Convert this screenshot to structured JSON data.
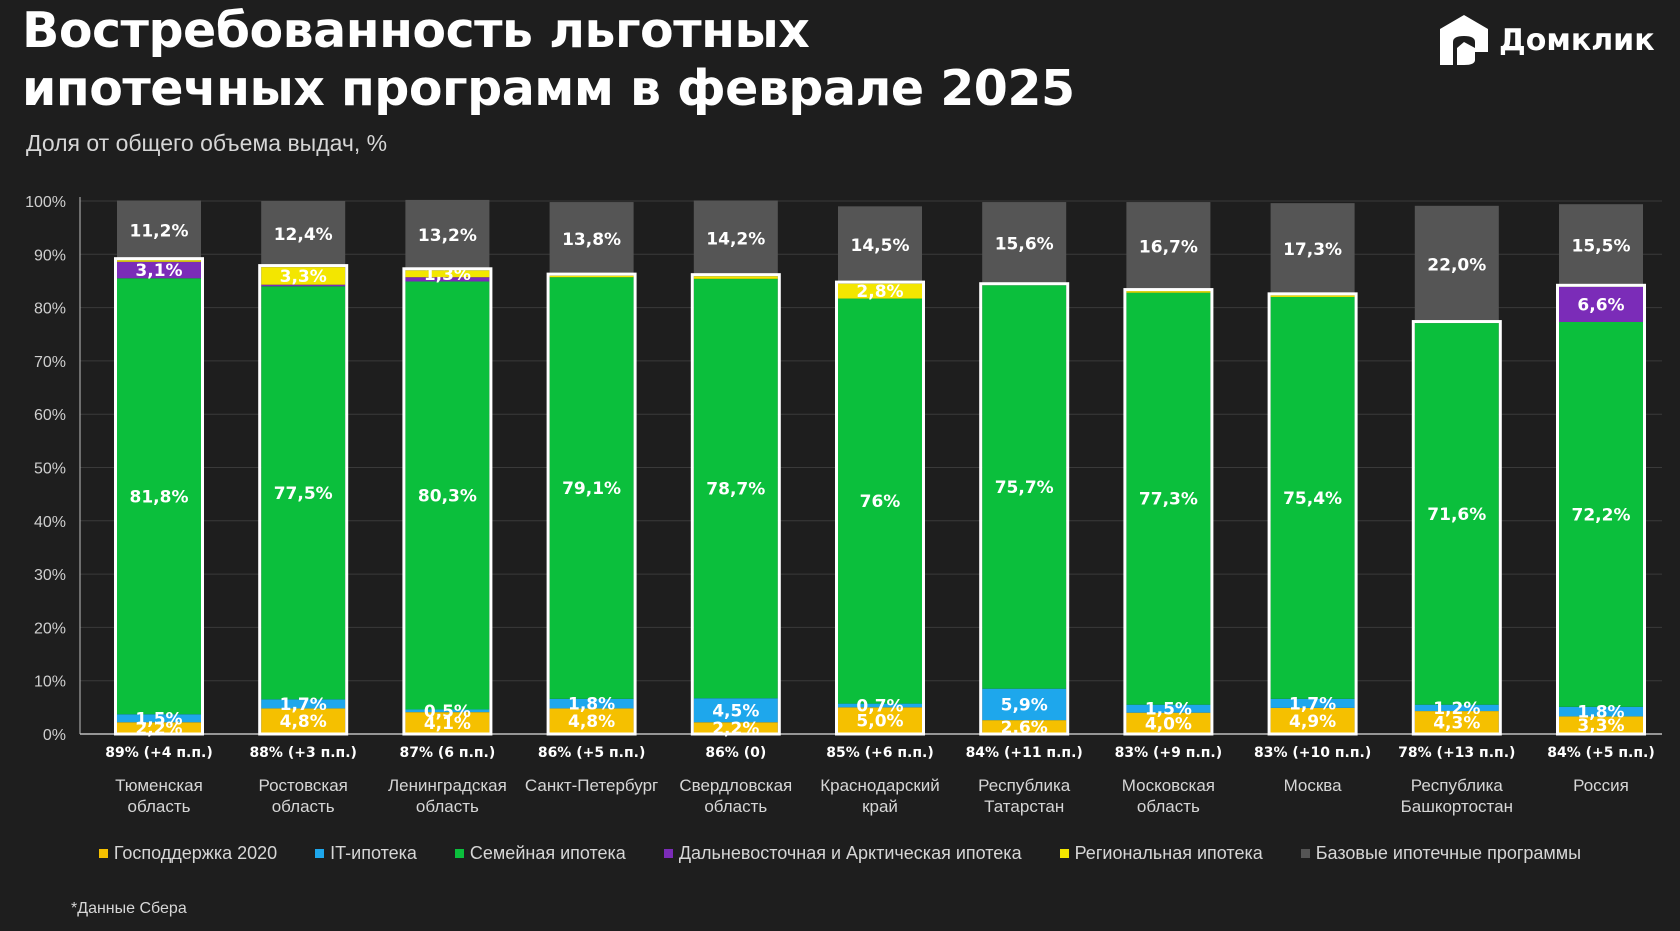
{
  "header": {
    "title_line1": "Востребованность льготных",
    "title_line2": "ипотечных программ в феврале 2025",
    "subtitle": "Доля от общего объема выдач, %"
  },
  "logo": {
    "text": "Домклик",
    "icon": "house-logo-icon"
  },
  "footnote": "*Данные Сбера",
  "colors": {
    "gospodderzhka": "#f5c000",
    "it": "#1ea7ec",
    "family": "#0bbf3c",
    "far_east": "#7b2cb8",
    "regional": "#f3e600",
    "base": "#555555",
    "background": "#1e1e1e"
  },
  "chart_data": {
    "type": "bar",
    "stacked": true,
    "ylim": [
      0,
      100
    ],
    "yticks": [
      "0%",
      "10%",
      "20%",
      "30%",
      "40%",
      "50%",
      "60%",
      "70%",
      "80%",
      "90%",
      "100%"
    ],
    "grid": true,
    "legend_position": "bottom",
    "categories": [
      [
        "Тюменская",
        "область"
      ],
      [
        "Ростовская",
        "область"
      ],
      [
        "Ленинградская",
        "область"
      ],
      [
        "Санкт-Петербург"
      ],
      [
        "Свердловская",
        "область"
      ],
      [
        "Краснодарский",
        "край"
      ],
      [
        "Республика",
        "Татарстан"
      ],
      [
        "Московская",
        "область"
      ],
      [
        "Москва"
      ],
      [
        "Республика",
        "Башкортостан"
      ],
      [
        "Россия"
      ]
    ],
    "totals": [
      "89% (+4 п.п.)",
      "88% (+3 п.п.)",
      "87% (6 п.п.)",
      "86% (+5 п.п.)",
      "86% (0)",
      "85% (+6 п.п.)",
      "84% (+11 п.п.)",
      "83% (+9 п.п.)",
      "83% (+10 п.п.)",
      "78% (+13 п.п.)",
      "84% (+5 п.п.)"
    ],
    "series": [
      {
        "name": "Господдержка 2020",
        "key": "gospodderzhka",
        "values": [
          2.2,
          4.8,
          4.1,
          4.8,
          2.2,
          5.0,
          2.6,
          4.0,
          4.9,
          4.3,
          3.3
        ],
        "labels": [
          "2,2%",
          "4,8%",
          "4,1%",
          "4,8%",
          "2,2%",
          "5,0%",
          "2,6%",
          "4,0%",
          "4,9%",
          "4,3%",
          "3,3%"
        ]
      },
      {
        "name": "IT-ипотека",
        "key": "it",
        "values": [
          1.5,
          1.7,
          0.5,
          1.8,
          4.5,
          0.7,
          5.9,
          1.5,
          1.7,
          1.2,
          1.8
        ],
        "labels": [
          "1,5%",
          "1,7%",
          "0,5%",
          "1,8%",
          "4,5%",
          "0,7%",
          "5,9%",
          "1,5%",
          "1,7%",
          "1,2%",
          "1,8%"
        ]
      },
      {
        "name": "Семейная ипотека",
        "key": "family",
        "values": [
          81.8,
          77.5,
          80.3,
          79.1,
          78.7,
          76,
          75.7,
          77.3,
          75.4,
          71.6,
          72.2
        ],
        "labels": [
          "81,8%",
          "77,5%",
          "80,3%",
          "79,1%",
          "78,7%",
          "76%",
          "75,7%",
          "77,3%",
          "75,4%",
          "71,6%",
          "72,2%"
        ]
      },
      {
        "name": "Дальневосточная и Арктическая ипотека",
        "key": "far_east",
        "values": [
          3.1,
          0.3,
          0.8,
          0,
          0,
          0,
          0,
          0,
          0,
          0,
          6.6
        ],
        "labels": [
          "3,1%",
          "",
          "",
          "",
          "",
          "",
          "",
          "",
          "",
          "",
          "6,6%"
        ]
      },
      {
        "name": "Региональная ипотека",
        "key": "regional",
        "values": [
          0.3,
          3.3,
          1.3,
          0.3,
          0.5,
          2.8,
          0,
          0.3,
          0.3,
          0,
          0
        ],
        "labels": [
          "",
          "3,3%",
          "1,3%",
          "",
          "",
          "2,8%",
          "",
          "",
          "",
          "",
          ""
        ]
      },
      {
        "name": "Базовые ипотечные программы",
        "key": "base",
        "values": [
          11.2,
          12.4,
          13.2,
          13.8,
          14.2,
          14.5,
          15.6,
          16.7,
          17.3,
          22.0,
          15.5
        ],
        "labels": [
          "11,2%",
          "12,4%",
          "13,2%",
          "13,8%",
          "14,2%",
          "14,5%",
          "15,6%",
          "16,7%",
          "17,3%",
          "22,0%",
          "15,5%"
        ]
      }
    ]
  }
}
